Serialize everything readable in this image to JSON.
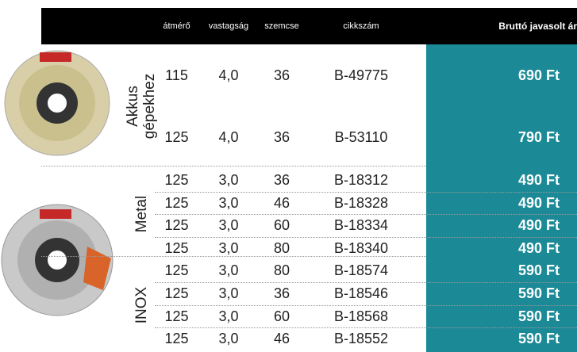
{
  "header": {
    "columns": [
      "átmérő",
      "vastagság",
      "szemcse",
      "cikkszám",
      "Bruttó javasolt ár"
    ]
  },
  "groups": [
    {
      "label_lines": [
        "Akkus",
        "gépekhez"
      ],
      "rows": [
        [
          "115",
          "4,0",
          "36",
          "B-49775",
          "690 Ft"
        ],
        [
          "125",
          "4,0",
          "36",
          "B-53110",
          "790 Ft"
        ]
      ]
    },
    {
      "label_lines": [
        "Metal"
      ],
      "rows": [
        [
          "125",
          "3,0",
          "36",
          "B-18312",
          "490 Ft"
        ],
        [
          "125",
          "3,0",
          "46",
          "B-18328",
          "490 Ft"
        ],
        [
          "125",
          "3,0",
          "60",
          "B-18334",
          "490 Ft"
        ],
        [
          "125",
          "3,0",
          "80",
          "B-18340",
          "490 Ft"
        ]
      ]
    },
    {
      "label_lines": [
        "INOX"
      ],
      "rows": [
        [
          "125",
          "3,0",
          "80",
          "B-18574",
          "590 Ft"
        ],
        [
          "125",
          "3,0",
          "36",
          "B-18546",
          "590 Ft"
        ],
        [
          "125",
          "3,0",
          "60",
          "B-18568",
          "590 Ft"
        ],
        [
          "125",
          "3,0",
          "46",
          "B-18552",
          "590 Ft"
        ]
      ]
    }
  ]
}
